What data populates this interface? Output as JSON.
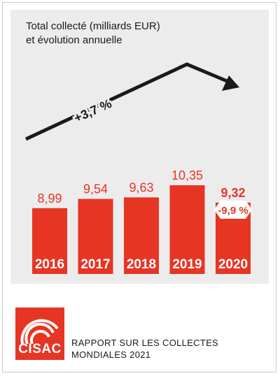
{
  "chart_data": {
    "type": "bar",
    "title_line1": "Total collecté (milliards EUR)",
    "title_line2": "et évolution annuelle",
    "categories": [
      "2016",
      "2017",
      "2018",
      "2019",
      "2020"
    ],
    "values": [
      8.99,
      9.54,
      9.63,
      10.35,
      9.32
    ],
    "value_labels": [
      "8,99",
      "9,54",
      "9,63",
      "10,35",
      "9,32"
    ],
    "annotations": {
      "growth": "+3,7 %",
      "decline": "-9,9 %"
    },
    "colors": {
      "bar": "#e73524",
      "label": "#e73524",
      "arrow": "#1a1a1a",
      "background": "#ececec"
    }
  },
  "footer": {
    "logo_text": "CISAC",
    "report_line1": "RAPPORT SUR LES COLLECTES",
    "report_line2": "MONDIALES 2021"
  }
}
